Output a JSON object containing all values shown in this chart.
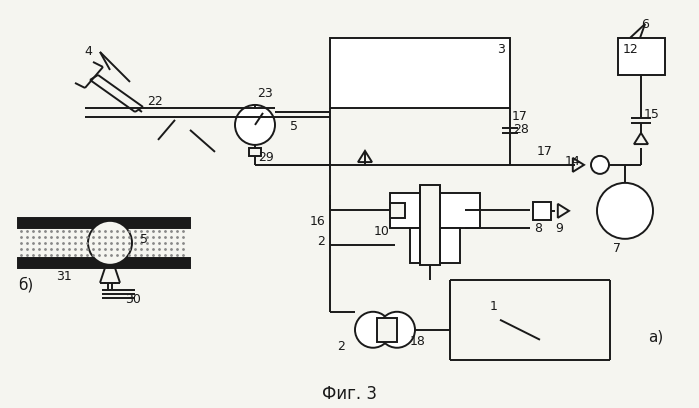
{
  "bg": "#f5f5f0",
  "lc": "#1a1a1a",
  "lw": 1.4,
  "title": "Фиг. 3",
  "tfs": 12,
  "fs": 9
}
